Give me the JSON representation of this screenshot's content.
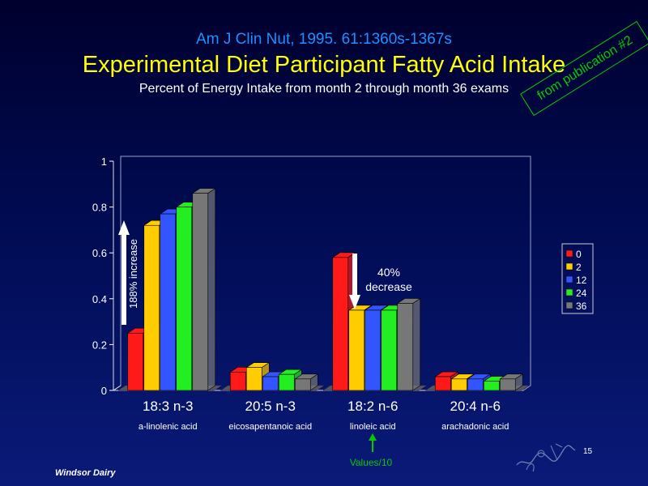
{
  "slide": {
    "citation": "Am J Clin Nut, 1995. 61:1360s-1367s",
    "title": "Experimental Diet Participant Fatty Acid Intake",
    "subtitle": "Percent of Energy Intake from month 2 through month 36 exams",
    "stamp": "from publication #2",
    "footer": "Windsor Dairy",
    "page_number": "15",
    "colors": {
      "citation": "#1e90ff",
      "title": "#ffff00",
      "text": "#ffffff",
      "stamp": "#00cc00",
      "values_note": "#00cc00"
    }
  },
  "chart_data": {
    "type": "bar",
    "categories": [
      "18:3 n-3",
      "20:5 n-3",
      "18:2 n-6",
      "20:4 n-6"
    ],
    "category_sublabels": [
      "a-linolenic acid",
      "eicosapentanoic acid",
      "linoleic acid",
      "arachadonic acid"
    ],
    "series": [
      {
        "name": "0",
        "color": "#ff1a1a",
        "values": [
          0.25,
          0.08,
          0.58,
          0.06
        ]
      },
      {
        "name": "2",
        "color": "#ffcc00",
        "values": [
          0.72,
          0.1,
          0.35,
          0.05
        ]
      },
      {
        "name": "12",
        "color": "#3355ff",
        "values": [
          0.77,
          0.06,
          0.35,
          0.05
        ]
      },
      {
        "name": "24",
        "color": "#22ee22",
        "values": [
          0.8,
          0.07,
          0.35,
          0.04
        ]
      },
      {
        "name": "36",
        "color": "#777777",
        "values": [
          0.86,
          0.05,
          0.38,
          0.05
        ]
      }
    ],
    "ylim": [
      0,
      1
    ],
    "yticks": [
      "0",
      "0.2",
      "0.4",
      "0.6",
      "0.8",
      "1"
    ],
    "legend_position": "right",
    "grid": false,
    "annotations": {
      "increase": "188% increase",
      "decrease_pct": "40%",
      "decrease_word": "decrease",
      "values_note": "Values/10"
    }
  }
}
